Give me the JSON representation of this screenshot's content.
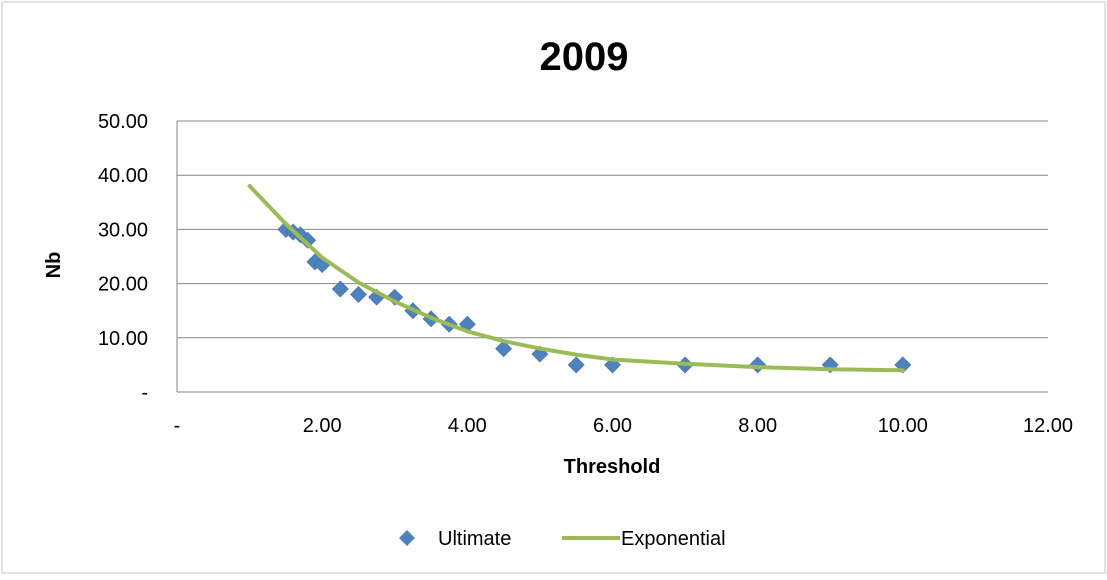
{
  "chart_data": {
    "type": "scatter",
    "title": "2009",
    "xlabel": "Threshold",
    "ylabel": "Nb",
    "xlim": [
      0,
      12
    ],
    "ylim": [
      0,
      50
    ],
    "x_ticks": [
      0,
      2,
      4,
      6,
      8,
      10,
      12
    ],
    "x_tick_labels": [
      "-",
      "2.00",
      "4.00",
      "6.00",
      "8.00",
      "10.00",
      "12.00"
    ],
    "y_ticks": [
      0,
      10,
      20,
      30,
      40,
      50
    ],
    "y_tick_labels": [
      "-",
      "10.00",
      "20.00",
      "30.00",
      "40.00",
      "50.00"
    ],
    "grid": "horizontal",
    "legend_position": "bottom",
    "series": [
      {
        "name": "Ultimate",
        "kind": "scatter",
        "marker": "diamond",
        "color": "#4F81BD",
        "points": [
          [
            1.5,
            30
          ],
          [
            1.6,
            29.5
          ],
          [
            1.7,
            29
          ],
          [
            1.8,
            28
          ],
          [
            1.9,
            24
          ],
          [
            2.0,
            23.5
          ],
          [
            2.25,
            19
          ],
          [
            2.5,
            18
          ],
          [
            2.75,
            17.5
          ],
          [
            3.0,
            17.5
          ],
          [
            3.25,
            15
          ],
          [
            3.5,
            13.5
          ],
          [
            3.75,
            12.5
          ],
          [
            4.0,
            12.5
          ],
          [
            4.5,
            8
          ],
          [
            5.0,
            7
          ],
          [
            5.5,
            5
          ],
          [
            6.0,
            5
          ],
          [
            7.0,
            5
          ],
          [
            8.0,
            5
          ],
          [
            9.0,
            5
          ],
          [
            10.0,
            5
          ]
        ]
      },
      {
        "name": "Exponential",
        "kind": "line",
        "color": "#9BBB59",
        "points": [
          [
            1.0,
            38
          ],
          [
            1.5,
            31
          ],
          [
            2.0,
            24.8
          ],
          [
            2.5,
            20.2
          ],
          [
            3.0,
            16.7
          ],
          [
            3.5,
            13.7
          ],
          [
            4.0,
            11.2
          ],
          [
            4.5,
            9.4
          ],
          [
            5.0,
            8.0
          ],
          [
            5.5,
            6.9
          ],
          [
            6.0,
            6.0
          ],
          [
            7.0,
            5.2
          ],
          [
            8.0,
            4.6
          ],
          [
            9.0,
            4.2
          ],
          [
            10.0,
            4.0
          ]
        ]
      }
    ]
  }
}
